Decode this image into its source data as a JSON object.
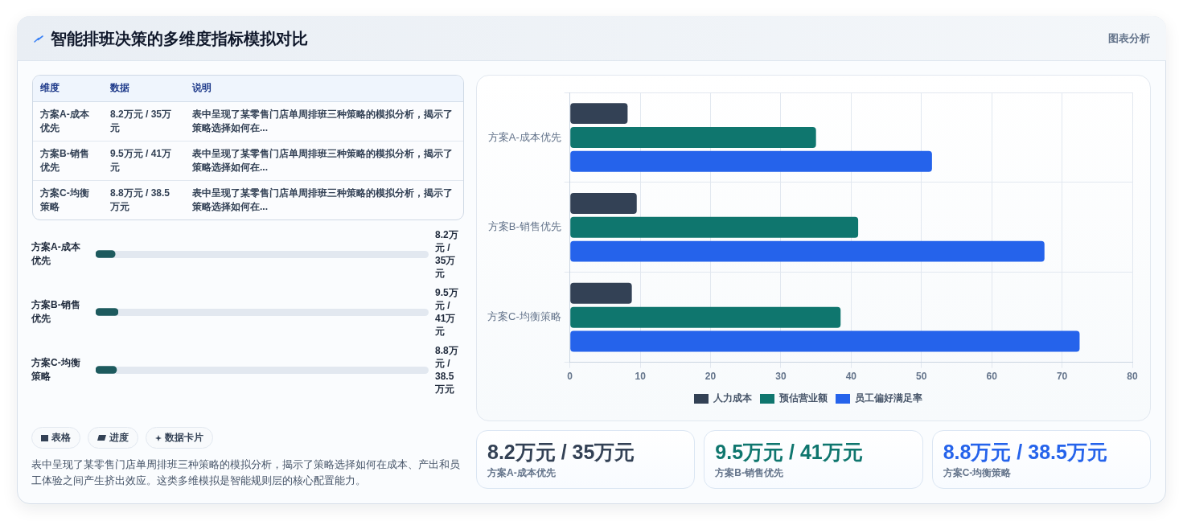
{
  "chart_data": [
    {
      "type": "other",
      "title": "智能排班决策的多维度指标模拟对比",
      "annotations": [
        "图表分析"
      ]
    },
    {
      "type": "other",
      "categories": [
        "维度",
        "数据",
        "说明"
      ],
      "cell_labels": [
        [
          "方案A-成本优先",
          "8.2万元 / 35万元",
          "表中呈现了某零售门店单周排班三种策略的模拟分析，揭示了策略选择如何在..."
        ],
        [
          "方案B-销售优先",
          "9.5万元 / 41万元",
          "表中呈现了某零售门店单周排班三种策略的模拟分析，揭示了策略选择如何在..."
        ],
        [
          "方案C-均衡策略",
          "8.8万元 / 38.5万元",
          "表中呈现了某零售门店单周排班三种策略的模拟分析，揭示了策略选择如何在..."
        ]
      ]
    },
    {
      "type": "bar",
      "orientation": "horizontal",
      "categories": [
        "方案A-成本优先",
        "方案B-销售优先",
        "方案C-均衡策略"
      ],
      "values": [
        8.2,
        9.5,
        8.8
      ],
      "color": "#1d5a5e",
      "value_labels": [
        "8.2万元 / 35万元",
        "9.5万元 / 41万元",
        "8.8万元 / 38.5万元"
      ]
    },
    {
      "type": "other",
      "annotations": [
        "表格",
        "进度",
        "数据卡片",
        "表中呈现了某零售门店单周排班三种策略的模拟分析，揭示了策略选择如何在成本、产出和员工体验之间产生挤出效应。这类多维模拟是智能规则层的核心配置能力。"
      ]
    },
    {
      "type": "bar",
      "orientation": "horizontal",
      "categories": [
        "方案A-成本优先",
        "方案B-销售优先",
        "方案C-均衡策略"
      ],
      "series": [
        {
          "name": "人力成本",
          "color": "#334155",
          "values": [
            8.2,
            9.5,
            8.8
          ]
        },
        {
          "name": "预估营业额",
          "color": "#0f766e",
          "values": [
            35,
            41,
            38.5
          ]
        },
        {
          "name": "员工偏好满足率",
          "color": "#2563eb",
          "values": [
            51.5,
            67.5,
            72.5
          ]
        }
      ],
      "xlim": [
        0,
        80
      ],
      "xticks": [
        0,
        10,
        20,
        30,
        40,
        50,
        60,
        70,
        80
      ],
      "grid": true,
      "legend": "bottom"
    },
    {
      "type": "other",
      "categories": [
        "方案A-成本优先",
        "方案B-销售优先",
        "方案C-均衡策略"
      ],
      "value_labels": [
        "8.2万元 / 35万元",
        "9.5万元 / 41万元",
        "8.8万元 / 38.5万元"
      ]
    }
  ]
}
